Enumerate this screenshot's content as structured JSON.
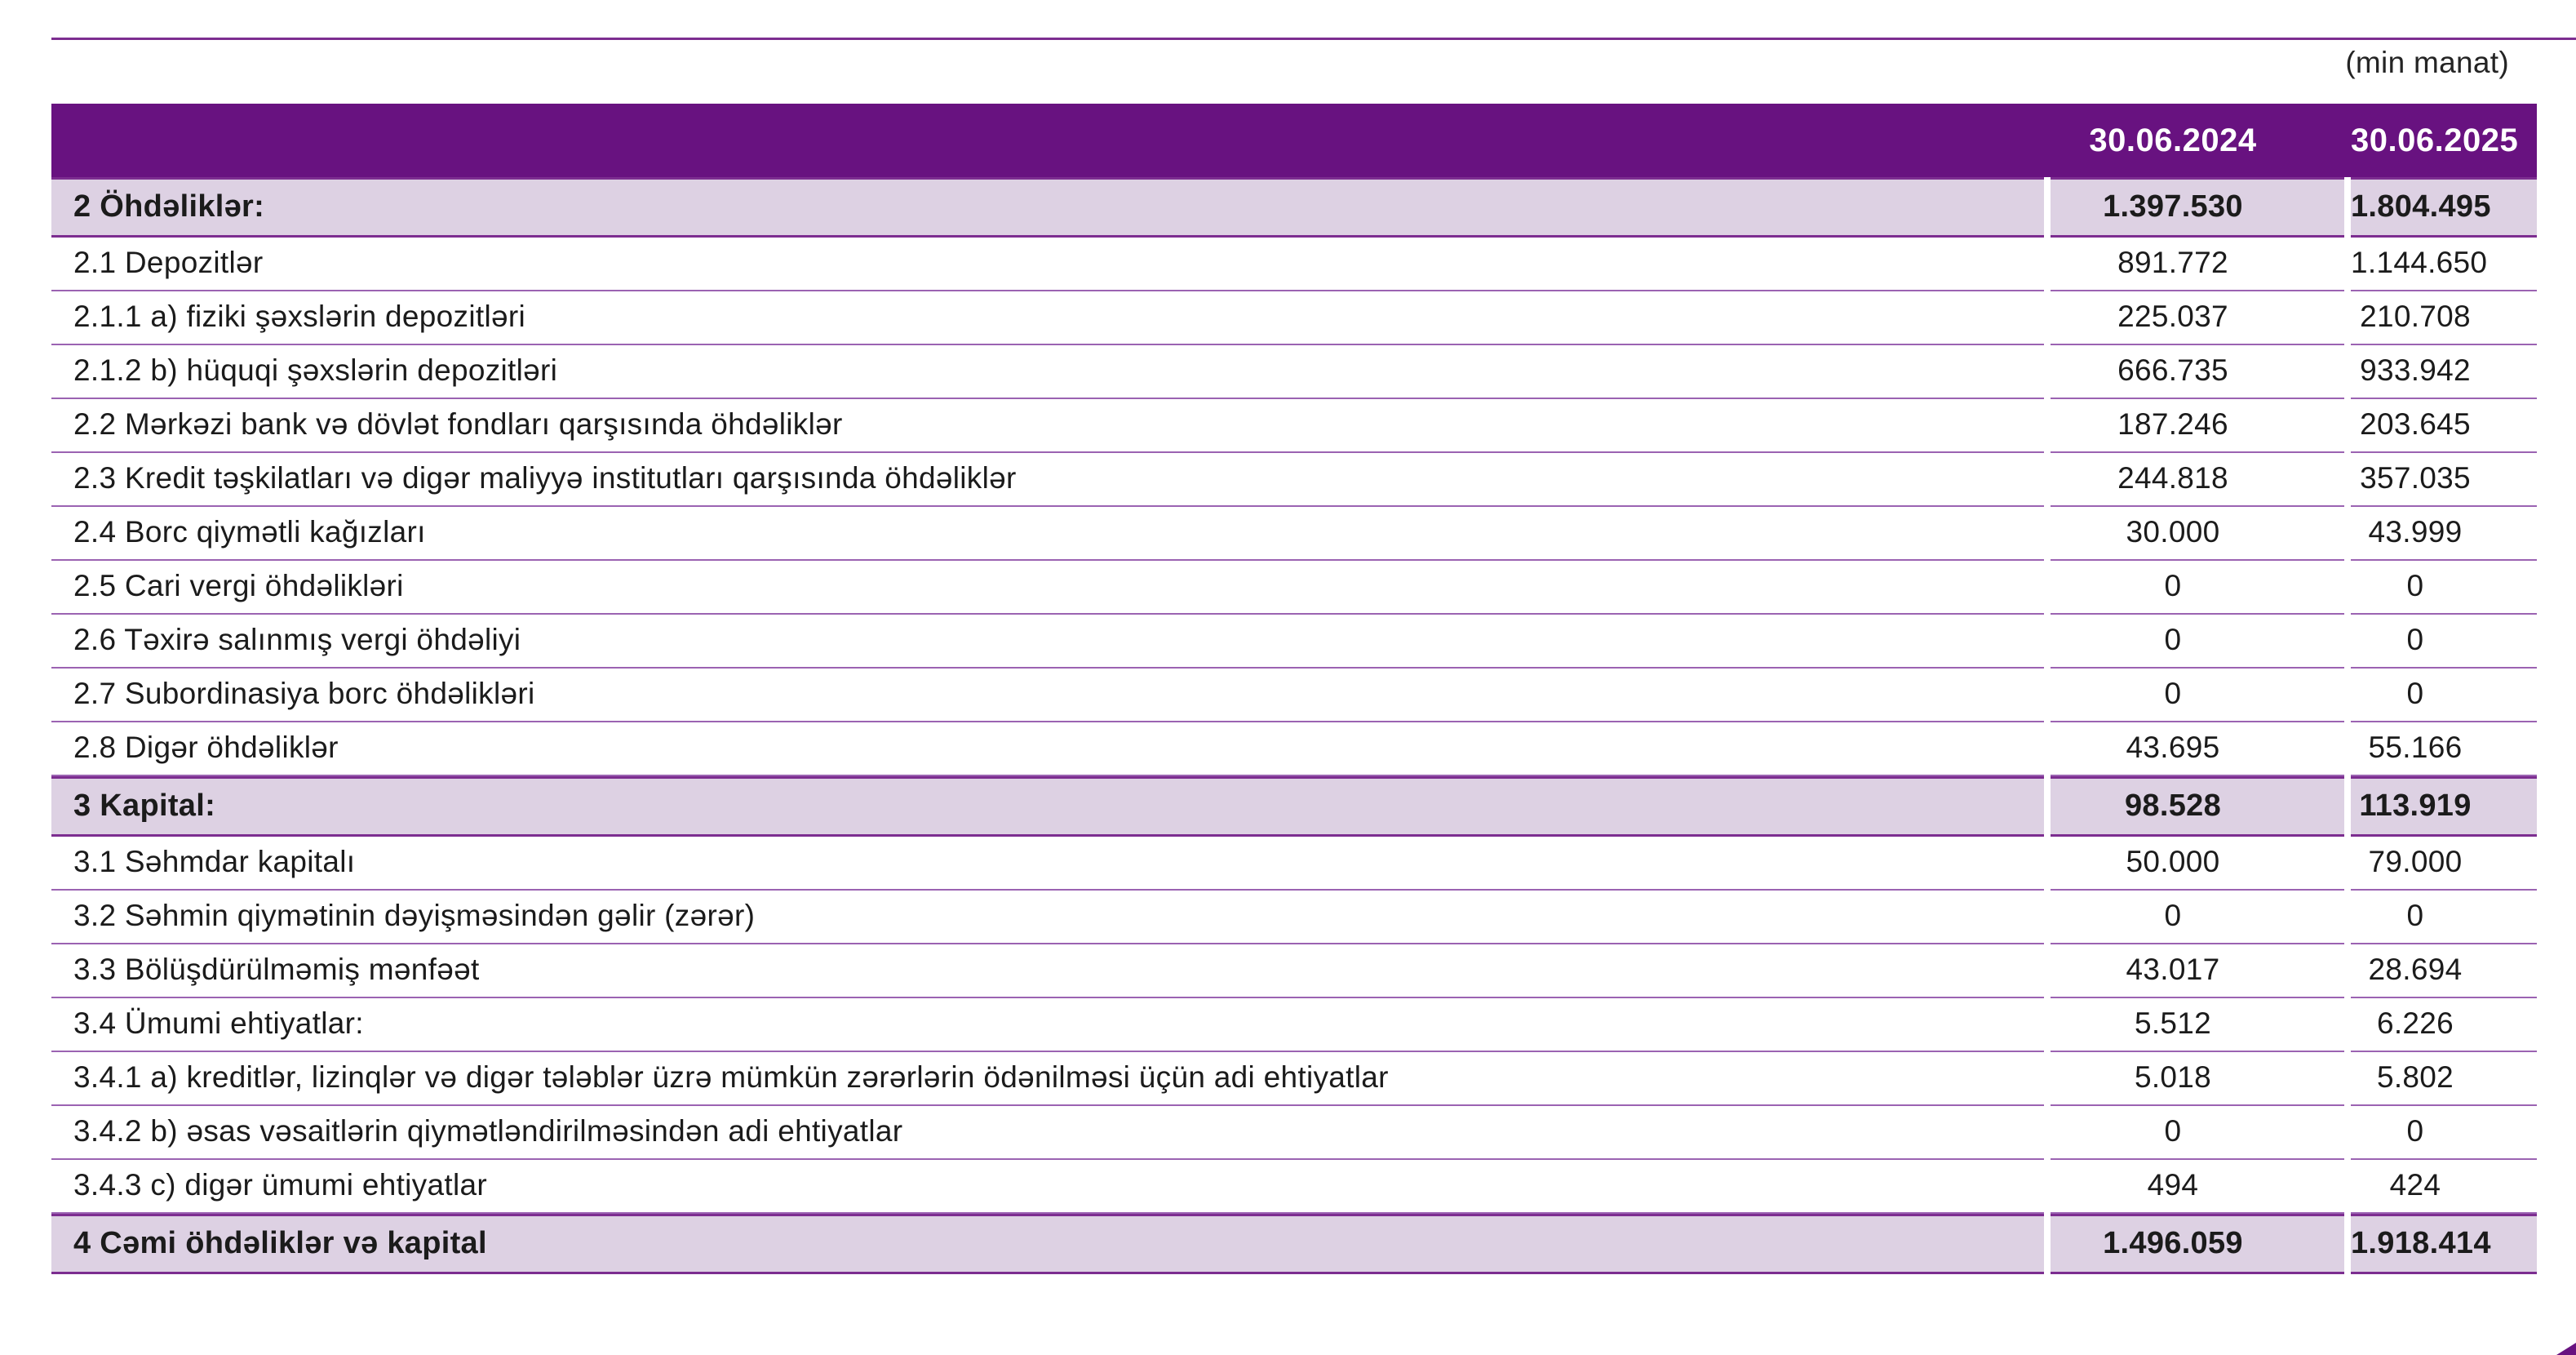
{
  "unit_note": "(min manat)",
  "columns": [
    "30.06.2024",
    "30.06.2025"
  ],
  "colors": {
    "header_bg": "#681280",
    "header_text": "#FFFFFF",
    "section_bg": "#DDD1E3",
    "section_border": "#7C2D90",
    "row_line": "#9B63B2",
    "top_rule": "#7C2D90",
    "body_text": "#1B1B1B"
  },
  "rows": [
    {
      "label": "2 Öhdəliklər:",
      "v2024": "1.397.530",
      "v2025": "1.804.495",
      "section": true
    },
    {
      "label": "2.1 Depozitlər",
      "v2024": "891.772",
      "v2025": "1.144.650",
      "section": false
    },
    {
      "label": "2.1.1 a) fiziki şəxslərin depozitləri",
      "v2024": "225.037",
      "v2025": "210.708",
      "section": false
    },
    {
      "label": "2.1.2 b) hüquqi şəxslərin depozitləri",
      "v2024": "666.735",
      "v2025": "933.942",
      "section": false
    },
    {
      "label": "2.2 Mərkəzi bank və dövlət fondları qarşısında öhdəliklər",
      "v2024": "187.246",
      "v2025": "203.645",
      "section": false
    },
    {
      "label": "2.3 Kredit təşkilatları və digər maliyyə institutları qarşısında öhdəliklər",
      "v2024": "244.818",
      "v2025": "357.035",
      "section": false
    },
    {
      "label": "2.4 Borc qiymətli kağızları",
      "v2024": "30.000",
      "v2025": "43.999",
      "section": false
    },
    {
      "label": "2.5 Cari vergi öhdəlikləri",
      "v2024": "0",
      "v2025": "0",
      "section": false
    },
    {
      "label": "2.6 Təxirə salınmış vergi öhdəliyi",
      "v2024": "0",
      "v2025": "0",
      "section": false
    },
    {
      "label": "2.7 Subordinasiya borc öhdəlikləri",
      "v2024": "0",
      "v2025": "0",
      "section": false
    },
    {
      "label": "2.8 Digər öhdəliklər",
      "v2024": "43.695",
      "v2025": "55.166",
      "section": false
    },
    {
      "label": "3 Kapital:",
      "v2024": "98.528",
      "v2025": "113.919",
      "section": true
    },
    {
      "label": "3.1 Səhmdar kapitalı",
      "v2024": "50.000",
      "v2025": "79.000",
      "section": false
    },
    {
      "label": "3.2 Səhmin qiymətinin dəyişməsindən gəlir (zərər)",
      "v2024": "0",
      "v2025": "0",
      "section": false
    },
    {
      "label": "3.3 Bölüşdürülməmiş mənfəət",
      "v2024": "43.017",
      "v2025": "28.694",
      "section": false
    },
    {
      "label": "3.4 Ümumi ehtiyatlar:",
      "v2024": "5.512",
      "v2025": "6.226",
      "section": false
    },
    {
      "label": "3.4.1 a) kreditlər, lizinqlər və digər tələblər üzrə mümkün zərərlərin ödənilməsi üçün adi ehtiyatlar",
      "v2024": "5.018",
      "v2025": "5.802",
      "section": false
    },
    {
      "label": "3.4.2 b) əsas vəsaitlərin qiymətləndirilməsindən adi ehtiyatlar",
      "v2024": "0",
      "v2025": "0",
      "section": false
    },
    {
      "label": "3.4.3 c) digər ümumi ehtiyatlar",
      "v2024": "494",
      "v2025": "424",
      "section": false
    },
    {
      "label": "4 Cəmi öhdəliklər və kapital",
      "v2024": "1.496.059",
      "v2025": "1.918.414",
      "section": true
    }
  ]
}
